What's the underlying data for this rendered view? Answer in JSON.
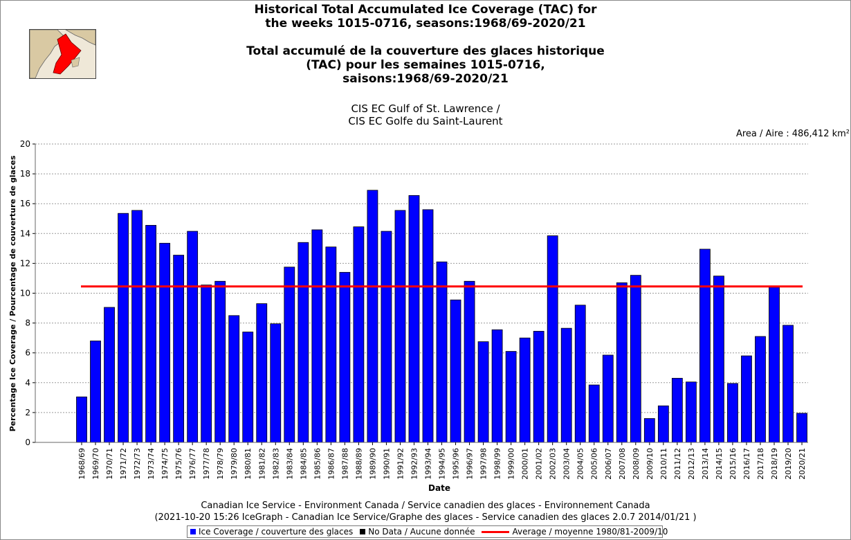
{
  "title": {
    "en_line1": "Historical Total Accumulated Ice Coverage (TAC) for",
    "en_line2": "the weeks 1015-0716, seasons:1968/69-2020/21",
    "fr_line1": "Total accumulé de la couverture des glaces historique",
    "fr_line2": "(TAC) pour les semaines 1015-0716,",
    "fr_line3": "saisons:1968/69-2020/21",
    "region_line1": "CIS EC Gulf of St. Lawrence /",
    "region_line2": "CIS EC Golfe du Saint-Laurent"
  },
  "area_label": "Area / Aire : 486,412 km²",
  "footer": {
    "line1": "Canadian Ice Service - Environment Canada / Service canadien des glaces - Environnement Canada",
    "line2": "(2021-10-20 15:26 IceGraph - Canadian Ice Service/Graphe des glaces - Service canadien des glaces 2.0.7 2014/01/21 )"
  },
  "legend": {
    "ice": "Ice Coverage / couverture des glaces",
    "nodata": "No Data / Aucune donnée",
    "average": "Average / moyenne 1980/81-2009/10"
  },
  "colors": {
    "bar": "#0000ff",
    "bar_outline": "#000000",
    "nodata": "#000000",
    "average": "#ff0000",
    "grid": "#999999"
  },
  "chart_data": {
    "type": "bar",
    "xlabel": "Date",
    "ylabel": "Percentage Ice Coverage / Pourcentage de couverture de glaces",
    "ylim": [
      0,
      20
    ],
    "yticks": [
      0,
      2,
      4,
      6,
      8,
      10,
      12,
      14,
      16,
      18,
      20
    ],
    "grid": true,
    "average": 10.45,
    "categories": [
      "1968/69",
      "1969/70",
      "1970/71",
      "1971/72",
      "1972/73",
      "1973/74",
      "1974/75",
      "1975/76",
      "1976/77",
      "1977/78",
      "1978/79",
      "1979/80",
      "1980/81",
      "1981/82",
      "1982/83",
      "1983/84",
      "1984/85",
      "1985/86",
      "1986/87",
      "1987/88",
      "1988/89",
      "1989/90",
      "1990/91",
      "1991/92",
      "1992/93",
      "1993/94",
      "1994/95",
      "1995/96",
      "1996/97",
      "1997/98",
      "1998/99",
      "1999/00",
      "2000/01",
      "2001/02",
      "2002/03",
      "2003/04",
      "2004/05",
      "2005/06",
      "2006/07",
      "2007/08",
      "2008/09",
      "2009/10",
      "2010/11",
      "2011/12",
      "2012/13",
      "2013/14",
      "2014/15",
      "2015/16",
      "2016/17",
      "2017/18",
      "2018/19",
      "2019/20",
      "2020/21"
    ],
    "series": [
      {
        "name": "Ice Coverage / couverture des glaces",
        "values": [
          3.05,
          6.8,
          9.05,
          15.35,
          15.55,
          14.55,
          13.35,
          12.55,
          14.15,
          10.55,
          10.8,
          8.5,
          7.4,
          9.3,
          7.95,
          11.75,
          13.4,
          14.25,
          13.1,
          11.4,
          14.45,
          16.9,
          14.15,
          15.55,
          16.55,
          15.6,
          12.1,
          9.55,
          10.8,
          6.75,
          7.55,
          6.1,
          7.0,
          7.45,
          13.85,
          7.65,
          9.2,
          3.85,
          5.85,
          10.7,
          11.2,
          1.6,
          2.45,
          4.3,
          4.05,
          12.95,
          11.15,
          3.95,
          5.8,
          7.1,
          10.4,
          7.85,
          1.95
        ]
      }
    ]
  }
}
